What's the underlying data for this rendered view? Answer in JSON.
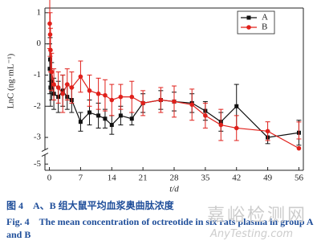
{
  "chart_data": {
    "type": "line",
    "x_label": "t/d",
    "y_label": "LnC (ng·mL⁻¹)",
    "x": [
      0.08,
      0.17,
      0.25,
      0.5,
      1,
      2,
      3,
      4,
      5,
      7,
      9,
      11,
      12.5,
      14,
      16,
      18.5,
      21,
      25,
      28,
      32,
      35,
      38.5,
      42,
      49,
      56
    ],
    "series": [
      {
        "name": "A",
        "color": "#111111",
        "marker": "square",
        "values": [
          -0.8,
          -0.5,
          -1.4,
          -1.2,
          -1.6,
          -1.7,
          -1.5,
          -1.7,
          -1.8,
          -2.5,
          -2.2,
          -2.3,
          -2.4,
          -2.6,
          -2.3,
          -2.4,
          -1.9,
          -1.8,
          -1.85,
          -1.9,
          -2.15,
          -2.5,
          -2.0,
          -3.0,
          -2.85
        ],
        "errors": [
          0.8,
          0.7,
          0.6,
          0.6,
          0.5,
          0.5,
          0.5,
          0.4,
          0.4,
          0.3,
          0.4,
          0.4,
          0.3,
          0.3,
          0.3,
          0.2,
          0.3,
          0.3,
          0.3,
          0.3,
          0.3,
          0.3,
          0.7,
          0.2,
          0.4
        ]
      },
      {
        "name": "B",
        "color": "#e0201b",
        "marker": "circle",
        "values": [
          0.65,
          0.3,
          -0.2,
          -0.9,
          -1.3,
          -1.4,
          -1.6,
          -1.3,
          -1.4,
          -1.05,
          -1.5,
          -1.6,
          -1.65,
          -1.8,
          -1.7,
          -1.7,
          -1.9,
          -1.8,
          -1.85,
          -1.95,
          -2.3,
          -2.6,
          -2.7,
          -2.8,
          -3.35
        ],
        "errors": [
          0.8,
          0.7,
          0.7,
          0.6,
          0.5,
          0.5,
          0.6,
          0.5,
          0.5,
          0.5,
          0.5,
          0.5,
          0.5,
          0.5,
          0.4,
          0.5,
          0.4,
          0.4,
          0.5,
          0.5,
          0.4,
          0.5,
          0.4,
          0.3,
          0.3
        ]
      }
    ],
    "xlim": [
      -1,
      57
    ],
    "xticks": [
      0,
      7,
      14,
      21,
      28,
      35,
      42,
      49,
      56
    ],
    "ylim": [
      -5.2,
      1.15
    ],
    "yticks": [
      1,
      0,
      -1,
      -2,
      -3,
      -5
    ],
    "y_break": [
      -3.4,
      -4.7
    ],
    "legend": "upper right"
  },
  "caption": {
    "zh": "图 4　A、B 组大鼠平均血浆奥曲肽浓度",
    "en": "Fig. 4　The mean concentration of octreotide in six rats plasma in group A and B"
  },
  "watermark": {
    "zh": "嘉峪检测网",
    "en": "AnyTesting.com"
  }
}
